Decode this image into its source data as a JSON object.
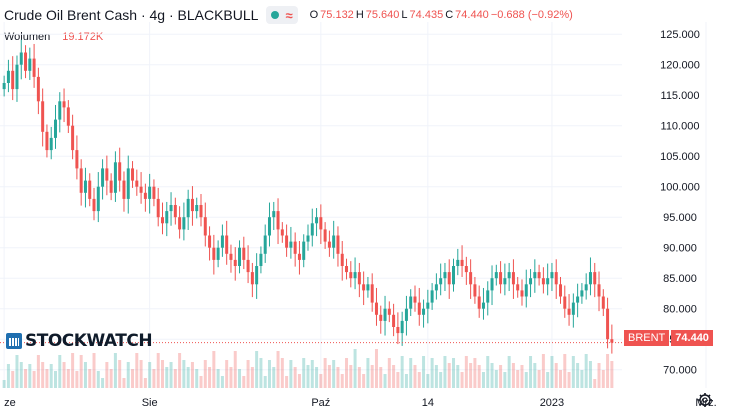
{
  "header": {
    "title": "Crude Oil Brent Cash · 4g · BLACKBULL",
    "ohlc": [
      {
        "k": "O",
        "v": "75.132"
      },
      {
        "k": "H",
        "v": "75.640"
      },
      {
        "k": "L",
        "v": "74.435"
      },
      {
        "k": "C",
        "v": "74.440"
      }
    ],
    "change": "−0.688 (−0.92%)"
  },
  "volume": {
    "label": "Wolumen",
    "value": "19.172K"
  },
  "logo": {
    "text": "STOCKWATCH"
  },
  "price_tag": {
    "symbol": "BRENT",
    "value": "74.440"
  },
  "colors": {
    "up": "#26a69a",
    "down": "#ef5350",
    "grid": "#f0f3fa"
  },
  "icons": {
    "settings": "gear-icon",
    "indicator_dot": "dot-icon",
    "indicator_wave": "wave-icon"
  },
  "chart_data": {
    "type": "candlestick",
    "ylim": [
      67,
      127
    ],
    "y_ticks": [
      "125.000",
      "120.000",
      "115.000",
      "110.000",
      "105.000",
      "100.000",
      "95.000",
      "90.000",
      "85.000",
      "80.000",
      "75.000",
      "70.000"
    ],
    "x_ticks": [
      {
        "label": "ze",
        "i": 0
      },
      {
        "label": "Sie",
        "i": 34
      },
      {
        "label": "Paź",
        "i": 74
      },
      {
        "label": "14",
        "i": 99
      },
      {
        "label": "2023",
        "i": 128
      },
      {
        "label": "Mrz.",
        "i": 164
      }
    ],
    "last_price": 74.44,
    "closes": [
      117,
      119,
      116,
      120,
      122,
      119,
      121,
      118,
      114,
      109,
      106,
      108,
      111,
      114,
      113,
      110,
      106,
      103,
      99,
      101,
      98,
      96,
      100,
      103,
      101,
      99,
      104,
      101,
      98,
      103,
      101,
      100,
      99,
      98,
      100,
      98,
      95,
      94,
      96,
      97,
      95,
      93,
      95,
      98,
      96,
      97,
      95,
      92,
      90,
      88,
      90,
      92,
      89,
      88,
      87,
      90,
      88,
      86,
      84,
      87,
      89,
      92,
      95,
      96,
      93,
      92,
      90,
      91,
      89,
      88,
      91,
      92,
      94,
      95,
      93,
      91,
      90,
      92,
      89,
      87,
      86,
      85,
      86,
      84,
      83,
      84,
      81,
      79,
      78,
      80,
      79,
      77,
      76,
      78,
      80,
      82,
      81,
      79,
      80,
      81,
      83,
      84,
      85,
      86,
      84,
      87,
      88,
      87,
      86,
      84,
      82,
      80,
      81,
      83,
      85,
      86,
      84,
      85,
      86,
      84,
      83,
      82,
      84,
      85,
      86,
      85,
      84,
      85,
      86,
      84,
      82,
      80,
      79,
      81,
      82,
      83,
      84,
      86,
      84,
      82,
      80,
      75,
      74.44
    ]
  }
}
